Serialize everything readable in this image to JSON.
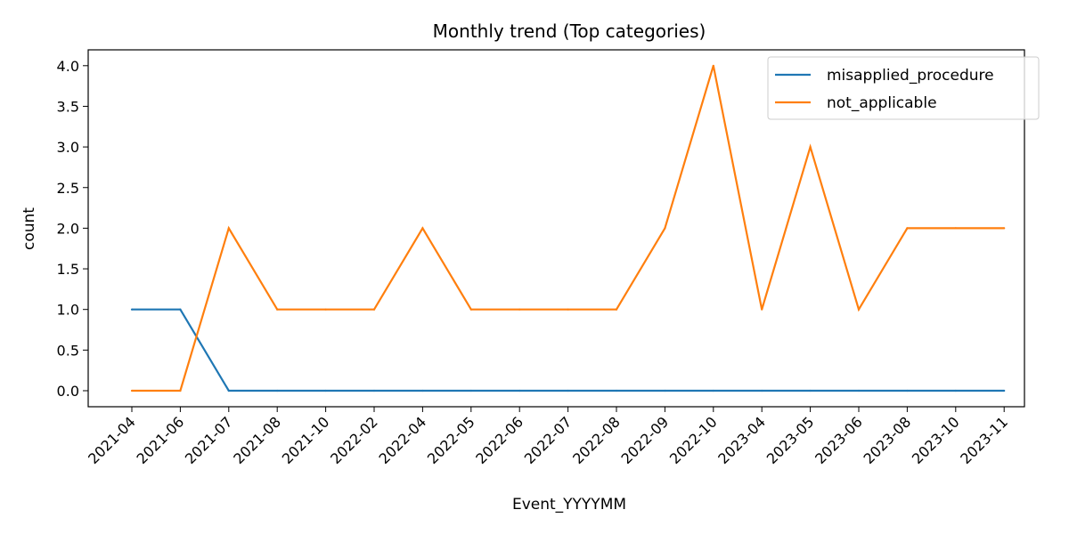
{
  "chart_data": {
    "type": "line",
    "title": "Monthly trend (Top categories)",
    "xlabel": "Event_YYYYMM",
    "ylabel": "count",
    "categories": [
      "2021-04",
      "2021-06",
      "2021-07",
      "2021-08",
      "2021-10",
      "2022-02",
      "2022-04",
      "2022-05",
      "2022-06",
      "2022-07",
      "2022-08",
      "2022-09",
      "2022-10",
      "2023-04",
      "2023-05",
      "2023-06",
      "2023-08",
      "2023-10",
      "2023-11"
    ],
    "series": [
      {
        "name": "misapplied_procedure",
        "color": "#1f77b4",
        "values": [
          1,
          1,
          0,
          0,
          0,
          0,
          0,
          0,
          0,
          0,
          0,
          0,
          0,
          0,
          0,
          0,
          0,
          0,
          0
        ]
      },
      {
        "name": "not_applicable",
        "color": "#ff7f0e",
        "values": [
          0,
          0,
          2,
          1,
          1,
          1,
          2,
          1,
          1,
          1,
          1,
          2,
          4,
          1,
          3,
          1,
          2,
          2,
          2
        ]
      }
    ],
    "ylim": [
      -0.2,
      4.2
    ],
    "yticks": [
      "0.0",
      "0.5",
      "1.0",
      "1.5",
      "2.0",
      "2.5",
      "3.0",
      "3.5",
      "4.0"
    ],
    "legend_position": "top-right",
    "grid": false
  }
}
